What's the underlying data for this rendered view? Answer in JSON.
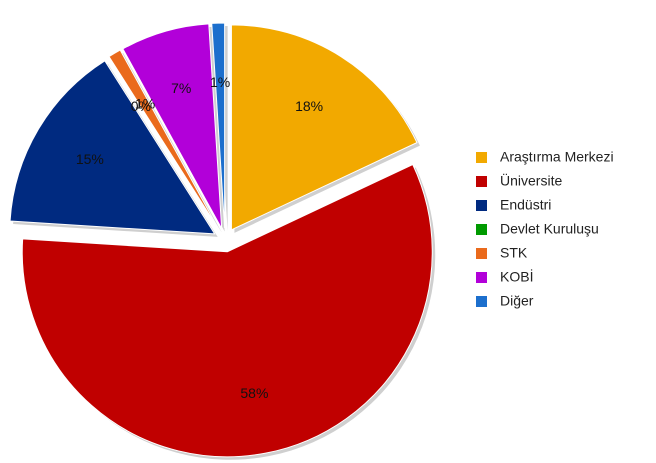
{
  "chart_data": {
    "type": "pie",
    "categories": [
      "Araştırma Merkezi",
      "Üniversite",
      "Endüstri",
      "Devlet Kuruluşu",
      "STK",
      "KOBİ",
      "Diğer"
    ],
    "values": [
      18,
      58,
      15,
      0,
      1,
      7,
      1
    ],
    "value_labels": [
      "18%",
      "58%",
      "15%",
      "0%",
      "1%",
      "7%",
      "1%"
    ],
    "colors": [
      "#f2a900",
      "#c00000",
      "#002a80",
      "#009a00",
      "#ea6a1c",
      "#b200d9",
      "#1c6fcd"
    ],
    "legend": "right"
  }
}
